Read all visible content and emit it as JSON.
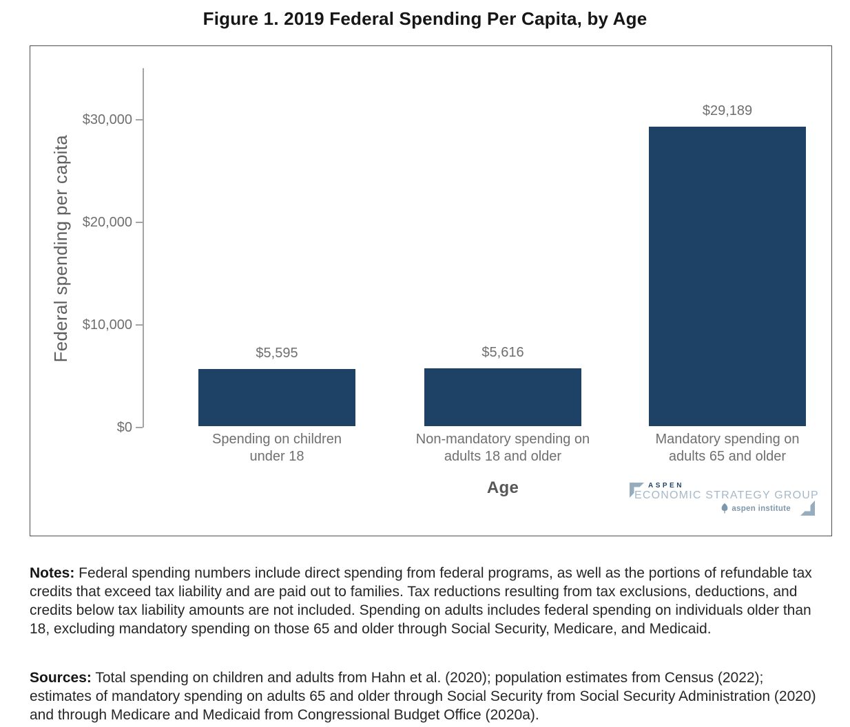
{
  "title": "Figure 1. 2019 Federal Spending Per Capita, by Age",
  "chart_data": {
    "type": "bar",
    "title": "Figure 1. 2019 Federal Spending Per Capita, by Age",
    "categories": [
      "Spending on children under 18",
      "Non-mandatory spending on adults 18 and older",
      "Mandatory spending on adults 65 and older"
    ],
    "categories_lines": [
      [
        "Spending on children",
        "under 18"
      ],
      [
        "Non-mandatory spending on",
        "adults 18 and older"
      ],
      [
        "Mandatory spending on",
        "adults 65 and older"
      ]
    ],
    "values": [
      5595,
      5616,
      29189
    ],
    "value_labels": [
      "$5,595",
      "$5,616",
      "$29,189"
    ],
    "xlabel": "Age",
    "ylabel": "Federal spending per capita",
    "yticks": [
      "$0",
      "$10,000",
      "$20,000",
      "$30,000"
    ],
    "ytick_values": [
      0,
      10000,
      20000,
      30000
    ],
    "ylim": [
      0,
      35000
    ],
    "grid": false,
    "legend": "none",
    "bar_color": "#1e4265"
  },
  "logo": {
    "brand_top": "ASPEN",
    "brand_main": "ECONOMIC STRATEGY GROUP",
    "brand_sub": "aspen institute"
  },
  "notes": {
    "label": "Notes:",
    "text": " Federal spending numbers include direct spending from federal programs, as well as the portions of refundable tax credits that exceed tax liability and are paid out to families. Tax reductions resulting from tax exclusions, deductions, and credits below tax liability amounts are not included. Spending on adults includes federal spending on individuals older than 18, excluding mandatory spending on those 65 and older through Social Security, Medicare, and Medicaid."
  },
  "sources": {
    "label": "Sources:",
    "text": " Total spending on children and adults from Hahn et al. (2020); population estimates from Census (2022); estimates of mandatory spending on adults 65 and older through Social Security from Social Security Administration (2020) and through Medicare and Medicaid from Congressional Budget Office (2020a)."
  }
}
